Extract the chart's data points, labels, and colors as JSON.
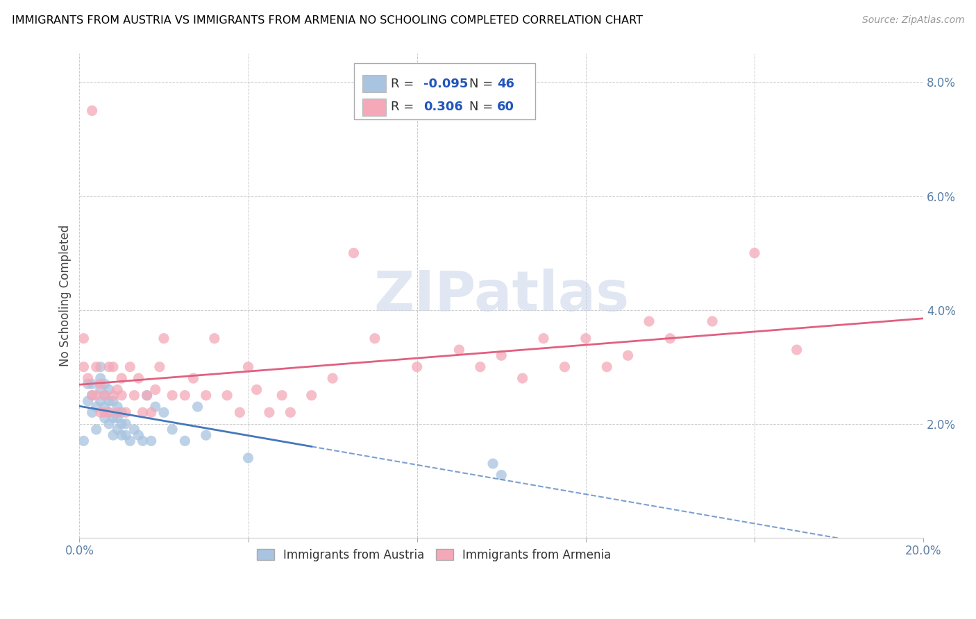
{
  "title": "IMMIGRANTS FROM AUSTRIA VS IMMIGRANTS FROM ARMENIA NO SCHOOLING COMPLETED CORRELATION CHART",
  "source": "Source: ZipAtlas.com",
  "ylabel": "No Schooling Completed",
  "xlim": [
    0.0,
    0.2
  ],
  "ylim": [
    0.0,
    0.085
  ],
  "xtick_vals": [
    0.0,
    0.04,
    0.08,
    0.12,
    0.16,
    0.2
  ],
  "xticklabels": [
    "0.0%",
    "",
    "",
    "",
    "",
    "20.0%"
  ],
  "ytick_vals": [
    0.0,
    0.02,
    0.04,
    0.06,
    0.08
  ],
  "yticklabels": [
    "",
    "2.0%",
    "4.0%",
    "6.0%",
    "8.0%"
  ],
  "austria_color": "#a8c4e0",
  "armenia_color": "#f4a8b8",
  "austria_R": -0.095,
  "austria_N": 46,
  "armenia_R": 0.306,
  "armenia_N": 60,
  "austria_line_color": "#4477bb",
  "armenia_line_color": "#e06080",
  "watermark": "ZIPatlas",
  "tick_color": "#5b7fa6",
  "austria_scatter_x": [
    0.001,
    0.002,
    0.002,
    0.003,
    0.003,
    0.003,
    0.004,
    0.004,
    0.005,
    0.005,
    0.005,
    0.005,
    0.006,
    0.006,
    0.006,
    0.006,
    0.007,
    0.007,
    0.007,
    0.007,
    0.008,
    0.008,
    0.008,
    0.009,
    0.009,
    0.009,
    0.01,
    0.01,
    0.01,
    0.011,
    0.011,
    0.012,
    0.013,
    0.014,
    0.015,
    0.016,
    0.017,
    0.018,
    0.02,
    0.022,
    0.025,
    0.028,
    0.03,
    0.04,
    0.098,
    0.1
  ],
  "austria_scatter_y": [
    0.017,
    0.024,
    0.027,
    0.022,
    0.025,
    0.027,
    0.019,
    0.023,
    0.024,
    0.026,
    0.028,
    0.03,
    0.021,
    0.023,
    0.025,
    0.027,
    0.02,
    0.022,
    0.024,
    0.026,
    0.018,
    0.021,
    0.024,
    0.019,
    0.021,
    0.023,
    0.018,
    0.02,
    0.022,
    0.018,
    0.02,
    0.017,
    0.019,
    0.018,
    0.017,
    0.025,
    0.017,
    0.023,
    0.022,
    0.019,
    0.017,
    0.023,
    0.018,
    0.014,
    0.013,
    0.011
  ],
  "armenia_scatter_x": [
    0.001,
    0.001,
    0.002,
    0.003,
    0.003,
    0.004,
    0.004,
    0.005,
    0.005,
    0.006,
    0.006,
    0.007,
    0.007,
    0.008,
    0.008,
    0.009,
    0.009,
    0.01,
    0.01,
    0.011,
    0.012,
    0.013,
    0.014,
    0.015,
    0.016,
    0.017,
    0.018,
    0.019,
    0.02,
    0.022,
    0.025,
    0.027,
    0.03,
    0.032,
    0.035,
    0.038,
    0.04,
    0.042,
    0.045,
    0.048,
    0.05,
    0.055,
    0.06,
    0.065,
    0.07,
    0.08,
    0.09,
    0.095,
    0.1,
    0.105,
    0.11,
    0.115,
    0.12,
    0.125,
    0.13,
    0.135,
    0.14,
    0.15,
    0.16,
    0.17
  ],
  "armenia_scatter_y": [
    0.03,
    0.035,
    0.028,
    0.075,
    0.025,
    0.025,
    0.03,
    0.022,
    0.027,
    0.022,
    0.025,
    0.022,
    0.03,
    0.025,
    0.03,
    0.022,
    0.026,
    0.025,
    0.028,
    0.022,
    0.03,
    0.025,
    0.028,
    0.022,
    0.025,
    0.022,
    0.026,
    0.03,
    0.035,
    0.025,
    0.025,
    0.028,
    0.025,
    0.035,
    0.025,
    0.022,
    0.03,
    0.026,
    0.022,
    0.025,
    0.022,
    0.025,
    0.028,
    0.05,
    0.035,
    0.03,
    0.033,
    0.03,
    0.032,
    0.028,
    0.035,
    0.03,
    0.035,
    0.03,
    0.032,
    0.038,
    0.035,
    0.038,
    0.05,
    0.033
  ]
}
